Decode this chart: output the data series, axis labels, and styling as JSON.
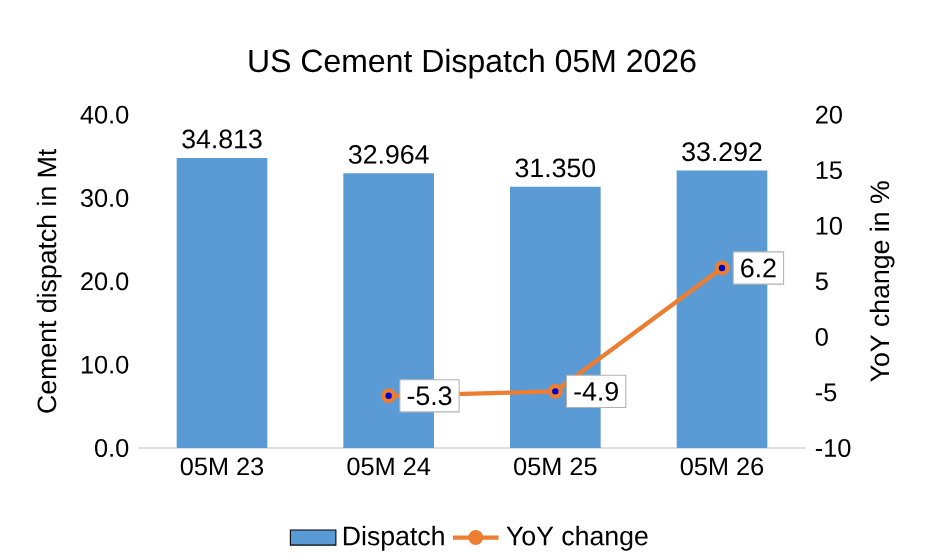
{
  "chart_data": {
    "type": "bar",
    "title": "US Cement  Dispatch 05M 2026",
    "categories": [
      "05M  23",
      "05M  24",
      "05M  25",
      "05M  26"
    ],
    "ylabel": "Cement dispatch in Mt",
    "y2label": "YoY change in %",
    "ylim": [
      0,
      40
    ],
    "yticks": [
      {
        "value": 0,
        "label": "0.0"
      },
      {
        "value": 10,
        "label": "10.0"
      },
      {
        "value": 20,
        "label": "20.0"
      },
      {
        "value": 30,
        "label": "30.0"
      },
      {
        "value": 40,
        "label": "40.0"
      }
    ],
    "y2lim": [
      -10,
      20
    ],
    "y2ticks": [
      -10,
      -5,
      0,
      5,
      10,
      15,
      20
    ],
    "legend": "bottom",
    "series": [
      {
        "name": "Dispatch",
        "color": "#5b9bd5",
        "values": [
          34.813,
          32.964,
          31.35,
          33.292
        ],
        "value_labels": [
          "34.813",
          "32.964",
          "31.350",
          "33.292"
        ]
      },
      {
        "name": "YoY change",
        "type": "line",
        "axis": "y2",
        "color": "#ed7d31",
        "marker": "circle",
        "values": [
          null,
          -5.3,
          -4.9,
          6.2
        ],
        "value_labels": [
          null,
          "-5.3",
          "-4.9",
          "6.2"
        ]
      }
    ]
  }
}
